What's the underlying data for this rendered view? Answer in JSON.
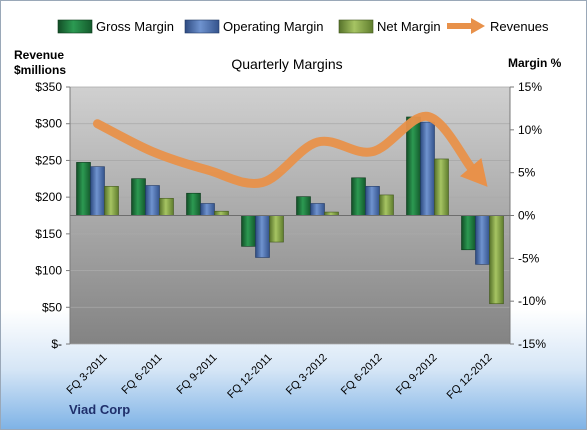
{
  "chart_data": {
    "type": "bar",
    "title": "Quarterly Margins",
    "company": "Viad Corp",
    "ylabel_left": [
      "Revenue",
      "$millions"
    ],
    "ylabel_right": "Margin %",
    "categories": [
      "FQ 3-2011",
      "FQ 6-2011",
      "FQ 9-2011",
      "FQ 12-2011",
      "FQ 3-2012",
      "FQ 6-2012",
      "FQ 9-2012",
      "FQ 12-2012"
    ],
    "left_axis": {
      "min": 0,
      "max": 350,
      "step": 50,
      "tick_labels": [
        "$-",
        "$50",
        "$100",
        "$150",
        "$200",
        "$250",
        "$300",
        "$350"
      ]
    },
    "right_axis": {
      "min": -15,
      "max": 15,
      "step": 5,
      "tick_labels": [
        "-15%",
        "-10%",
        "-5%",
        "0%",
        "5%",
        "10%",
        "15%"
      ]
    },
    "series": [
      {
        "name": "Gross Margin",
        "kind": "bar",
        "axis": "right",
        "color": "#1e7a3e",
        "values": [
          6.2,
          4.3,
          2.6,
          -3.6,
          2.2,
          4.4,
          11.5,
          -4.0
        ]
      },
      {
        "name": "Operating Margin",
        "kind": "bar",
        "axis": "right",
        "color": "#4a6fb0",
        "values": [
          5.7,
          3.5,
          1.4,
          -4.9,
          1.4,
          3.4,
          10.9,
          -5.7
        ]
      },
      {
        "name": "Net Margin",
        "kind": "bar",
        "axis": "right",
        "color": "#7fa03a",
        "values": [
          3.4,
          2.0,
          0.5,
          -3.1,
          0.4,
          2.4,
          6.6,
          -10.3
        ]
      },
      {
        "name": "Revenues",
        "kind": "line",
        "axis": "left",
        "color": "#e8914a",
        "values": [
          300,
          262,
          237,
          220,
          275,
          262,
          310,
          222
        ]
      }
    ],
    "grid": true,
    "legend_position": "top"
  }
}
